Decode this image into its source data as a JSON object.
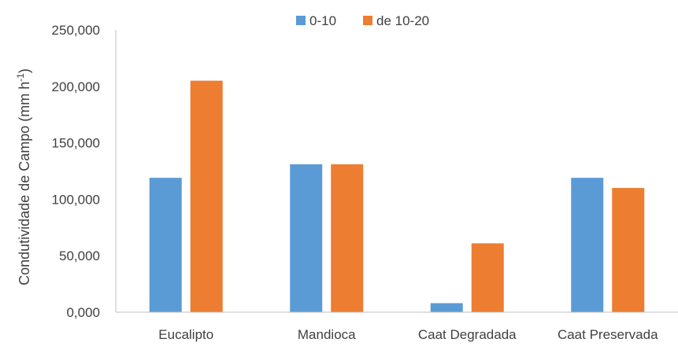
{
  "chart_data": {
    "type": "bar",
    "title": "",
    "xlabel": "",
    "ylabel": "Condutividade de Campo (mm h",
    "ylabel_superscript": "-1",
    "ylabel_close": ")",
    "categories": [
      "Eucalipto",
      "Mandioca",
      "Caat Degradada",
      "Caat Preservada"
    ],
    "series": [
      {
        "name": "0-10",
        "color": "#5B9BD5",
        "values": [
          119,
          131,
          8,
          119
        ]
      },
      {
        "name": "de 10-20",
        "color": "#ED7D31",
        "values": [
          205,
          131,
          61,
          110
        ]
      }
    ],
    "ylim": [
      0,
      250
    ],
    "yticks": [
      0,
      50,
      100,
      150,
      200,
      250
    ],
    "ytick_labels": [
      "0,000",
      "50,000",
      "100,000",
      "150,000",
      "200,000",
      "250,000"
    ],
    "grid": false,
    "legend_position": "top-center"
  }
}
